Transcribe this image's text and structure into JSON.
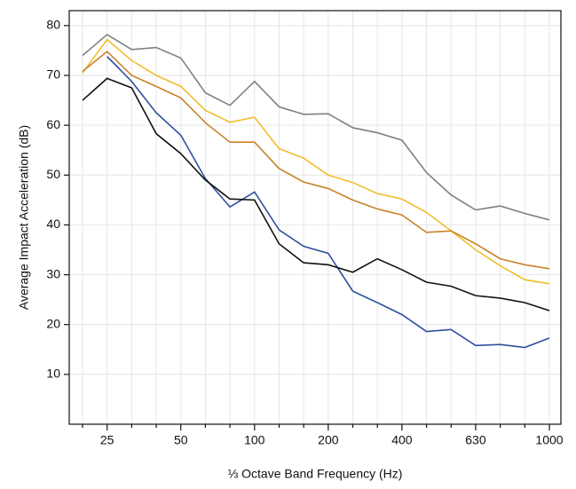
{
  "chart_data": {
    "type": "line",
    "x_label": "⅓ Octave Band Frequency (Hz)",
    "y_label": "Average Impact Acceleration (dB)",
    "categories": [
      null,
      "25",
      null,
      null,
      "50",
      null,
      null,
      "100",
      null,
      null,
      "200",
      null,
      null,
      "400",
      null,
      null,
      "630",
      null,
      null,
      "1000"
    ],
    "ylim": [
      0,
      83
    ],
    "yticks": [
      10,
      20,
      30,
      40,
      50,
      60,
      70,
      80
    ],
    "grid": true,
    "series": [
      {
        "color": "#808080",
        "values": [
          74,
          78.2,
          75.2,
          75.6,
          73.5,
          66.5,
          64,
          68.8,
          63.7,
          62.2,
          62.3,
          59.5,
          58.5,
          57,
          50.5,
          46,
          43,
          43.8,
          42.3,
          41
        ]
      },
      {
        "color": "#f2bd2c",
        "values": [
          70.5,
          77.2,
          73,
          70,
          67.8,
          63,
          60.6,
          61.6,
          55.3,
          53.4,
          50,
          48.5,
          46.3,
          45.2,
          42.5,
          38.8,
          35,
          31.8,
          29,
          28.2
        ]
      },
      {
        "color": "#c9822a",
        "values": [
          70.8,
          74.8,
          70,
          67.8,
          65.5,
          60.5,
          56.6,
          56.6,
          51.3,
          48.6,
          47.3,
          45,
          43.2,
          42,
          38.5,
          38.8,
          36.2,
          33.2,
          32,
          31.2
        ]
      },
      {
        "color": "#2f4f9e",
        "values": [
          null,
          73.8,
          68.8,
          62.5,
          58,
          49.3,
          43.6,
          46.6,
          39,
          35.7,
          34.3,
          26.7,
          24.4,
          22,
          18.6,
          19,
          15.8,
          16,
          15.4,
          17.3
        ]
      },
      {
        "color": "#111111",
        "values": [
          65,
          69.4,
          67.5,
          58.3,
          54.3,
          49,
          45.2,
          45,
          36.2,
          32.4,
          32,
          30.5,
          33.2,
          31,
          28.5,
          27.7,
          25.8,
          25.3,
          24.4,
          22.8
        ]
      }
    ]
  }
}
